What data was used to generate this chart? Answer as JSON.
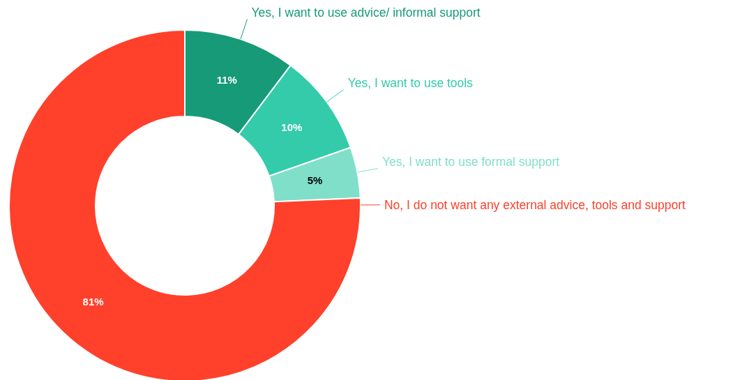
{
  "chart_data": {
    "type": "donut",
    "categories": [
      "Yes, I want to use advice/ informal support",
      "Yes, I want to use tools",
      "Yes, I want to use formal support",
      "No, I do not want any external advice, tools and support"
    ],
    "values": [
      11,
      10,
      5,
      81
    ],
    "colors": [
      "#169a78",
      "#33cbaa",
      "#80dfc9",
      "#ff402b"
    ],
    "value_labels": [
      "11%",
      "10%",
      "5%",
      "81%"
    ]
  }
}
